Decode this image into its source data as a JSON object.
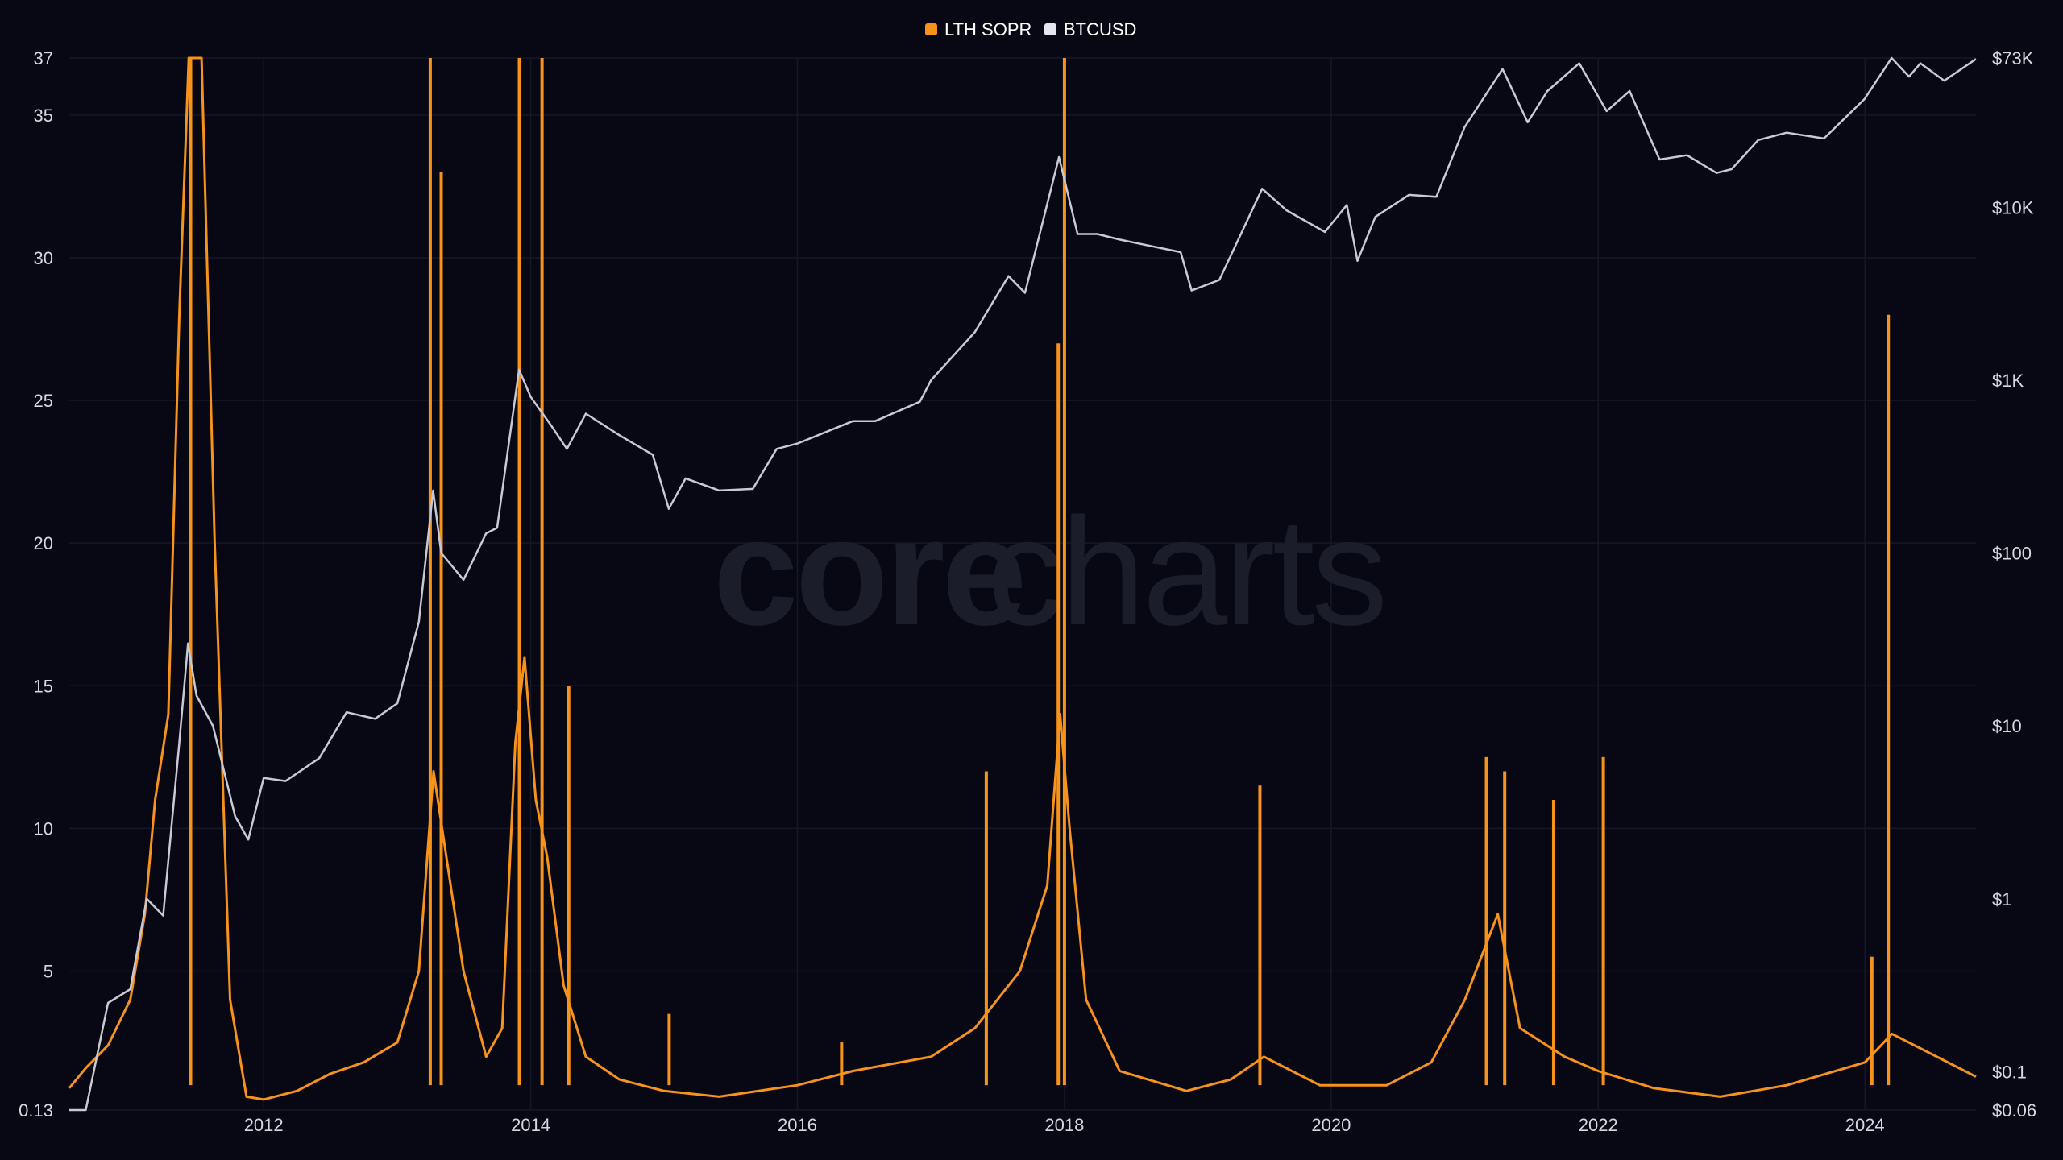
{
  "watermark": {
    "part1": "core",
    "part2": "charts"
  },
  "legend": [
    {
      "label": "LTH SOPR",
      "color": "#f7931a"
    },
    {
      "label": "BTCUSD",
      "color": "#e6e7ee"
    }
  ],
  "chart_data": {
    "type": "line",
    "title": "",
    "grid": true,
    "legend_position": "top-center",
    "x_axis": {
      "type": "date",
      "range": [
        "2010-07-18",
        "2024-10-31"
      ],
      "ticks": [
        "2012",
        "2014",
        "2016",
        "2018",
        "2020",
        "2022",
        "2024"
      ]
    },
    "y_left": {
      "scale": "linear",
      "range": [
        0.13,
        37
      ],
      "ticks": [
        "0.13",
        "5",
        "10",
        "15",
        "20",
        "25",
        "30",
        "35",
        "37"
      ],
      "tick_values": [
        0.13,
        5,
        10,
        15,
        20,
        25,
        30,
        35,
        37
      ]
    },
    "y_right": {
      "scale": "log",
      "range": [
        0.06,
        73000
      ],
      "ticks": [
        "$0.06",
        "$0.1",
        "$1",
        "$10",
        "$100",
        "$1K",
        "$10K",
        "$73K"
      ],
      "tick_values": [
        0.06,
        0.1,
        1,
        10,
        100,
        1000,
        10000,
        73000
      ]
    },
    "series": [
      {
        "name": "LTH SOPR",
        "axis": "left",
        "color": "#f7931a",
        "points": [
          [
            "2010-07-18",
            0.9
          ],
          [
            "2010-09-01",
            1.6
          ],
          [
            "2010-11-01",
            2.4
          ],
          [
            "2011-01-01",
            4.0
          ],
          [
            "2011-02-10",
            7.0
          ],
          [
            "2011-03-10",
            11.0
          ],
          [
            "2011-04-15",
            14.0
          ],
          [
            "2011-05-15",
            28.0
          ],
          [
            "2011-06-10",
            37.0
          ],
          [
            "2011-07-15",
            37.0
          ],
          [
            "2011-08-20",
            20.0
          ],
          [
            "2011-10-01",
            4.0
          ],
          [
            "2011-11-15",
            0.6
          ],
          [
            "2012-01-01",
            0.5
          ],
          [
            "2012-04-01",
            0.8
          ],
          [
            "2012-07-01",
            1.4
          ],
          [
            "2012-10-01",
            1.8
          ],
          [
            "2013-01-01",
            2.5
          ],
          [
            "2013-03-01",
            5.0
          ],
          [
            "2013-04-10",
            12.0
          ],
          [
            "2013-05-15",
            9.0
          ],
          [
            "2013-07-01",
            5.0
          ],
          [
            "2013-09-01",
            2.0
          ],
          [
            "2013-10-15",
            3.0
          ],
          [
            "2013-11-20",
            13.0
          ],
          [
            "2013-12-15",
            16.0
          ],
          [
            "2014-01-15",
            11.0
          ],
          [
            "2014-02-15",
            9.0
          ],
          [
            "2014-04-01",
            4.5
          ],
          [
            "2014-06-01",
            2.0
          ],
          [
            "2014-09-01",
            1.2
          ],
          [
            "2015-01-01",
            0.8
          ],
          [
            "2015-06-01",
            0.6
          ],
          [
            "2016-01-01",
            1.0
          ],
          [
            "2016-06-01",
            1.5
          ],
          [
            "2017-01-01",
            2.0
          ],
          [
            "2017-05-01",
            3.0
          ],
          [
            "2017-09-01",
            5.0
          ],
          [
            "2017-11-15",
            8.0
          ],
          [
            "2017-12-20",
            14.0
          ],
          [
            "2018-01-15",
            10.0
          ],
          [
            "2018-03-01",
            4.0
          ],
          [
            "2018-06-01",
            1.5
          ],
          [
            "2018-12-01",
            0.8
          ],
          [
            "2019-04-01",
            1.2
          ],
          [
            "2019-07-01",
            2.0
          ],
          [
            "2019-12-01",
            1.0
          ],
          [
            "2020-06-01",
            1.0
          ],
          [
            "2020-10-01",
            1.8
          ],
          [
            "2021-01-01",
            4.0
          ],
          [
            "2021-04-01",
            7.0
          ],
          [
            "2021-06-01",
            3.0
          ],
          [
            "2021-10-01",
            2.0
          ],
          [
            "2022-01-01",
            1.5
          ],
          [
            "2022-06-01",
            0.9
          ],
          [
            "2022-12-01",
            0.6
          ],
          [
            "2023-06-01",
            1.0
          ],
          [
            "2024-01-01",
            1.8
          ],
          [
            "2024-03-15",
            2.8
          ],
          [
            "2024-10-31",
            1.3
          ]
        ],
        "spikes": [
          [
            "2011-06-15",
            37.0
          ],
          [
            "2013-04-01",
            37.0
          ],
          [
            "2013-05-01",
            33.0
          ],
          [
            "2013-12-01",
            37.0
          ],
          [
            "2014-02-01",
            37.0
          ],
          [
            "2014-04-15",
            15.0
          ],
          [
            "2015-01-15",
            3.5
          ],
          [
            "2016-05-01",
            2.5
          ],
          [
            "2017-06-01",
            12.0
          ],
          [
            "2017-12-15",
            27.0
          ],
          [
            "2018-01-01",
            37.0
          ],
          [
            "2019-06-20",
            11.5
          ],
          [
            "2021-03-01",
            12.5
          ],
          [
            "2021-04-20",
            12.0
          ],
          [
            "2021-09-01",
            11.0
          ],
          [
            "2022-01-15",
            12.5
          ],
          [
            "2024-03-05",
            28.0
          ],
          [
            "2024-01-20",
            5.5
          ]
        ]
      },
      {
        "name": "BTCUSD",
        "axis": "right",
        "color": "#c8c9d2",
        "points": [
          [
            "2010-07-18",
            0.06
          ],
          [
            "2010-09-01",
            0.06
          ],
          [
            "2010-11-01",
            0.25
          ],
          [
            "2011-01-01",
            0.3
          ],
          [
            "2011-02-15",
            1.0
          ],
          [
            "2011-04-01",
            0.8
          ],
          [
            "2011-05-15",
            8.0
          ],
          [
            "2011-06-08",
            30.0
          ],
          [
            "2011-07-01",
            15.0
          ],
          [
            "2011-08-15",
            10.0
          ],
          [
            "2011-10-15",
            3.0
          ],
          [
            "2011-11-20",
            2.2
          ],
          [
            "2012-01-01",
            5.0
          ],
          [
            "2012-03-01",
            4.8
          ],
          [
            "2012-06-01",
            6.5
          ],
          [
            "2012-08-15",
            12.0
          ],
          [
            "2012-11-01",
            11.0
          ],
          [
            "2013-01-01",
            13.5
          ],
          [
            "2013-03-01",
            40.0
          ],
          [
            "2013-04-09",
            230.0
          ],
          [
            "2013-05-01",
            100.0
          ],
          [
            "2013-07-01",
            70.0
          ],
          [
            "2013-09-01",
            130.0
          ],
          [
            "2013-10-01",
            140.0
          ],
          [
            "2013-11-30",
            1150.0
          ],
          [
            "2014-01-01",
            800.0
          ],
          [
            "2014-02-25",
            550.0
          ],
          [
            "2014-04-10",
            400.0
          ],
          [
            "2014-06-01",
            640.0
          ],
          [
            "2014-09-01",
            480.0
          ],
          [
            "2014-12-01",
            370.0
          ],
          [
            "2015-01-14",
            180.0
          ],
          [
            "2015-03-01",
            270.0
          ],
          [
            "2015-06-01",
            230.0
          ],
          [
            "2015-09-01",
            235.0
          ],
          [
            "2015-11-05",
            400.0
          ],
          [
            "2016-01-01",
            430.0
          ],
          [
            "2016-06-01",
            580.0
          ],
          [
            "2016-08-01",
            580.0
          ],
          [
            "2016-12-01",
            750.0
          ],
          [
            "2017-01-01",
            1000.0
          ],
          [
            "2017-05-01",
            1900.0
          ],
          [
            "2017-08-01",
            4000.0
          ],
          [
            "2017-09-15",
            3200.0
          ],
          [
            "2017-12-17",
            19500.0
          ],
          [
            "2018-02-06",
            7000.0
          ],
          [
            "2018-04-01",
            7000.0
          ],
          [
            "2018-06-01",
            6500.0
          ],
          [
            "2018-11-15",
            5500.0
          ],
          [
            "2018-12-15",
            3300.0
          ],
          [
            "2019-03-01",
            3800.0
          ],
          [
            "2019-06-26",
            12800.0
          ],
          [
            "2019-09-01",
            9600.0
          ],
          [
            "2019-12-15",
            7200.0
          ],
          [
            "2020-02-13",
            10300.0
          ],
          [
            "2020-03-13",
            4900.0
          ],
          [
            "2020-05-01",
            8800.0
          ],
          [
            "2020-08-01",
            11800.0
          ],
          [
            "2020-10-15",
            11500.0
          ],
          [
            "2020-12-31",
            29000.0
          ],
          [
            "2021-04-14",
            63000.0
          ],
          [
            "2021-06-22",
            31000.0
          ],
          [
            "2021-08-15",
            47000.0
          ],
          [
            "2021-11-10",
            68000.0
          ],
          [
            "2022-01-24",
            36000.0
          ],
          [
            "2022-03-28",
            47000.0
          ],
          [
            "2022-06-18",
            18900.0
          ],
          [
            "2022-09-01",
            20000.0
          ],
          [
            "2022-11-21",
            15800.0
          ],
          [
            "2023-01-01",
            16600.0
          ],
          [
            "2023-03-15",
            24500.0
          ],
          [
            "2023-06-01",
            27000.0
          ],
          [
            "2023-09-11",
            25000.0
          ],
          [
            "2023-12-31",
            42300.0
          ],
          [
            "2024-03-14",
            73000.0
          ],
          [
            "2024-05-01",
            57000.0
          ],
          [
            "2024-06-01",
            68000.0
          ],
          [
            "2024-08-05",
            54000.0
          ],
          [
            "2024-10-31",
            72000.0
          ]
        ]
      }
    ]
  }
}
